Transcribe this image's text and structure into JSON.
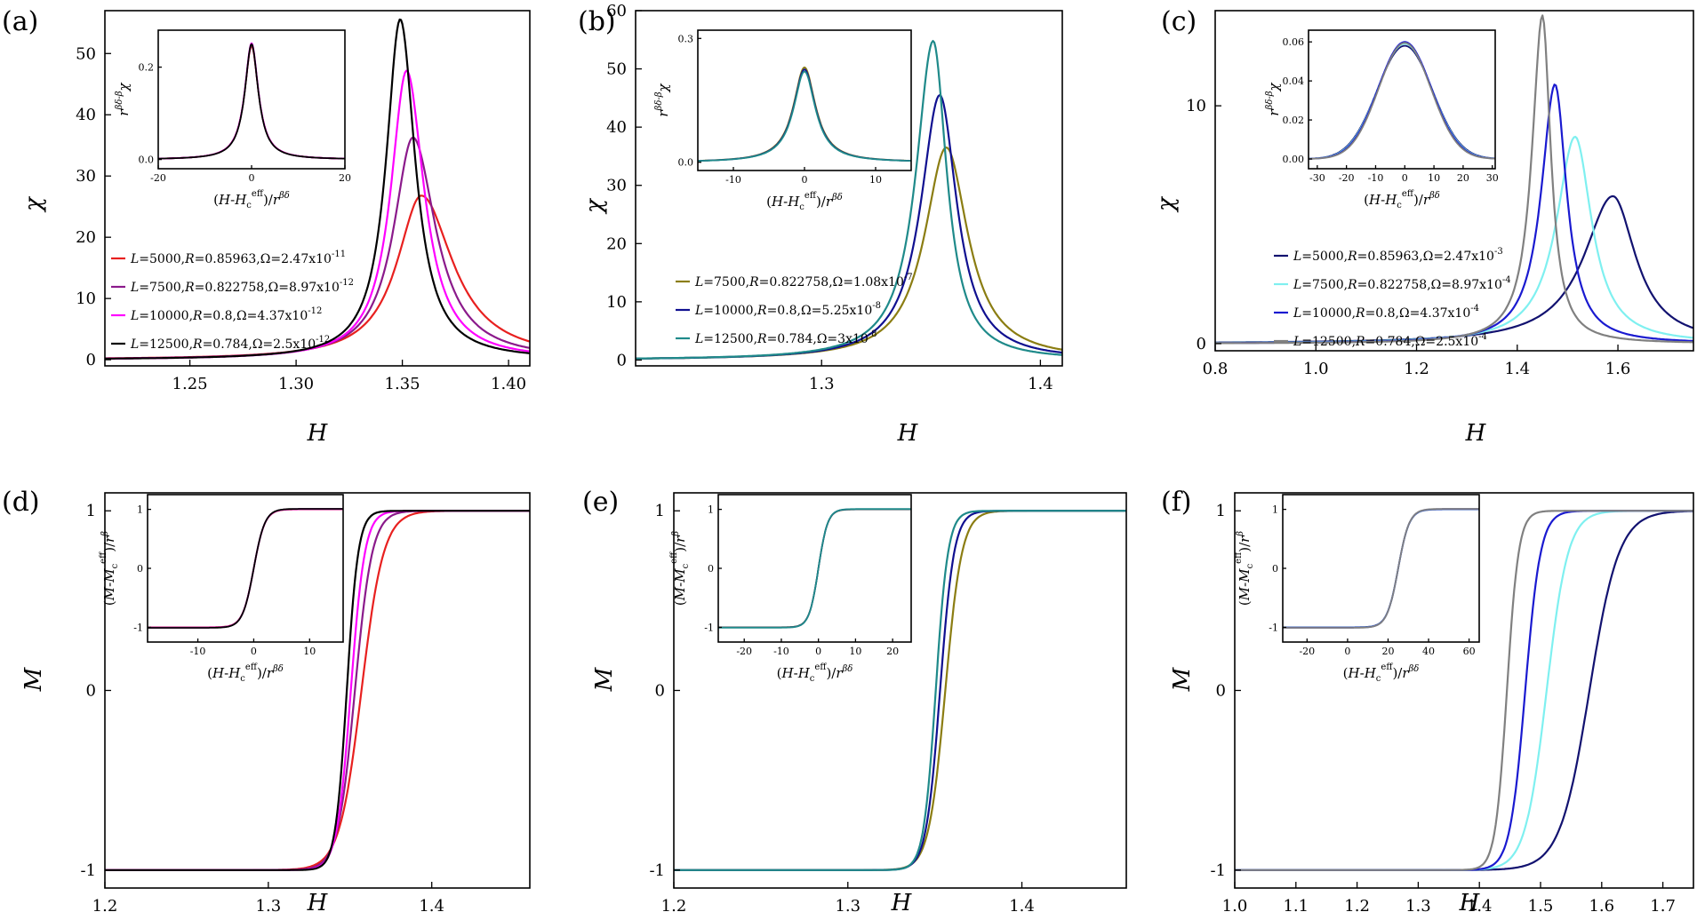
{
  "chart_data": [
    {
      "panel": "(a)",
      "type": "line",
      "xlabel": "H",
      "ylabel": "χ",
      "xlim": [
        1.21,
        1.41
      ],
      "ylim": [
        -1,
        57
      ],
      "xticks": [
        1.25,
        1.3,
        1.35,
        1.4
      ],
      "xtick_labels": [
        "1.25",
        "1.30",
        "1.35",
        "1.40"
      ],
      "yticks": [
        0,
        10,
        20,
        30,
        40,
        50
      ],
      "ytick_labels": [
        "0",
        "10",
        "20",
        "30",
        "40",
        "50"
      ],
      "legend": "lower-left",
      "series": [
        {
          "label": "L=5000, R=0.85963, Ω=2.47x10⁻¹¹",
          "color": "#e8201f",
          "peak_x": 1.359,
          "peak_y": 26.8,
          "width_left": 0.014,
          "width_right": 0.018
        },
        {
          "label": "L=7500, R=0.822758, Ω=8.97x10⁻¹²",
          "color": "#8b1a8b",
          "peak_x": 1.355,
          "peak_y": 36.3,
          "width_left": 0.011,
          "width_right": 0.013
        },
        {
          "label": "L=10000, R=0.8, Ω=4.37x10⁻¹²",
          "color": "#ff00ff",
          "peak_x": 1.352,
          "peak_y": 47.2,
          "width_left": 0.009,
          "width_right": 0.01
        },
        {
          "label": "L=12500, R=0.784, Ω=2.5x10⁻¹²",
          "color": "#000000",
          "peak_x": 1.349,
          "peak_y": 55.6,
          "width_left": 0.008,
          "width_right": 0.0085
        }
      ],
      "inset": {
        "xlabel": "(H-Hc^eff)/r^βδ",
        "ylabel": "r^(βδ-β) χ",
        "xlim": [
          -20,
          20
        ],
        "ylim": [
          -0.02,
          0.28
        ],
        "xticks": [
          -20,
          0,
          20
        ],
        "xtick_labels": [
          "-20",
          "0",
          "20"
        ],
        "yticks": [
          0.0,
          0.2
        ],
        "ytick_labels": [
          "0.0",
          "0.2"
        ],
        "peak_y": [
          0.245,
          0.248,
          0.252,
          0.25
        ],
        "width": 1.8
      }
    },
    {
      "panel": "(b)",
      "type": "line",
      "xlabel": "H",
      "ylabel": "χ",
      "xlim": [
        1.215,
        1.41
      ],
      "ylim": [
        -1,
        60
      ],
      "xticks": [
        1.3,
        1.4
      ],
      "xtick_labels": [
        "1.3",
        "1.4"
      ],
      "yticks": [
        0,
        10,
        20,
        30,
        40,
        50,
        60
      ],
      "ytick_labels": [
        "0",
        "10",
        "20",
        "30",
        "40",
        "50",
        "60"
      ],
      "legend": "lower-left",
      "series": [
        {
          "label": "L=7500, R=0.822758, Ω=1.08x10⁻⁷",
          "color": "#8b7d12",
          "peak_x": 1.357,
          "peak_y": 36.5,
          "width_left": 0.012,
          "width_right": 0.012
        },
        {
          "label": "L=10000, R=0.8, Ω=5.25x10⁻⁸",
          "color": "#101090",
          "peak_x": 1.354,
          "peak_y": 45.5,
          "width_left": 0.0105,
          "width_right": 0.0095
        },
        {
          "label": "L=12500, R=0.784, Ω=3x10⁻⁸",
          "color": "#1f8a8a",
          "peak_x": 1.351,
          "peak_y": 54.8,
          "width_left": 0.0095,
          "width_right": 0.0075
        }
      ],
      "inset": {
        "xlabel": "(H-Hc^eff)/r^βδ",
        "ylabel": "r^(βδ-β) χ",
        "xlim": [
          -15,
          15
        ],
        "ylim": [
          -0.02,
          0.32
        ],
        "xticks": [
          -10,
          0,
          10
        ],
        "xtick_labels": [
          "-10",
          "0",
          "10"
        ],
        "yticks": [
          0.0,
          0.3
        ],
        "ytick_labels": [
          "0.0",
          "0.3"
        ],
        "peak_y": [
          0.23,
          0.225,
          0.22
        ],
        "width": 1.9
      }
    },
    {
      "panel": "(c)",
      "type": "line",
      "xlabel": "H",
      "ylabel": "χ",
      "xlim": [
        0.8,
        1.75
      ],
      "ylim": [
        -0.3,
        14
      ],
      "xticks": [
        0.8,
        1.0,
        1.2,
        1.4,
        1.6
      ],
      "xtick_labels": [
        "0.8",
        "1.0",
        "1.2",
        "1.4",
        "1.6"
      ],
      "yticks": [
        0,
        10
      ],
      "ytick_labels": [
        "0",
        "10"
      ],
      "legend": "lower-left",
      "series": [
        {
          "label": "L=5000, R=0.85963, Ω=2.47x10⁻³",
          "color": "#121270",
          "peak_x": 1.59,
          "peak_y": 6.2,
          "width_left": 0.07,
          "width_right": 0.055
        },
        {
          "label": "L=7500, R=0.822758, Ω=8.97x10⁻⁴",
          "color": "#7ff0f0",
          "peak_x": 1.515,
          "peak_y": 8.7,
          "width_left": 0.045,
          "width_right": 0.04
        },
        {
          "label": "L=10000, R=0.8, Ω=4.37x10⁻⁴",
          "color": "#1a1ad0",
          "peak_x": 1.475,
          "peak_y": 10.9,
          "width_left": 0.033,
          "width_right": 0.028
        },
        {
          "label": "L=12500, R=0.784, Ω=2.5x10⁻⁴",
          "color": "#808080",
          "peak_x": 1.45,
          "peak_y": 13.8,
          "width_left": 0.025,
          "width_right": 0.02
        }
      ],
      "inset": {
        "xlabel": "(H-Hc^eff)/r^βδ",
        "ylabel": "r^(βδ-β) χ",
        "xlim": [
          -33,
          31
        ],
        "ylim": [
          -0.005,
          0.066
        ],
        "xticks": [
          -30,
          -20,
          -10,
          0,
          10,
          20,
          30
        ],
        "xtick_labels": [
          "-30",
          "-20",
          "-10",
          "0",
          "10",
          "20",
          "30"
        ],
        "yticks": [
          0.0,
          0.02,
          0.04,
          0.06
        ],
        "ytick_labels": [
          "0.00",
          "0.02",
          "0.04",
          "0.06"
        ],
        "peak_y": [
          0.058,
          0.059,
          0.06,
          0.0595
        ],
        "width": 9.5
      }
    },
    {
      "panel": "(d)",
      "type": "line",
      "xlabel": "H",
      "ylabel": "M",
      "xlim": [
        1.2,
        1.46
      ],
      "ylim": [
        -1.1,
        1.1
      ],
      "xticks": [
        1.2,
        1.3,
        1.4
      ],
      "xtick_labels": [
        "1.2",
        "1.3",
        "1.4"
      ],
      "yticks": [
        -1,
        0,
        1
      ],
      "ytick_labels": [
        "-1",
        "0",
        "1"
      ],
      "series": [
        {
          "color": "#e8201f",
          "center": 1.357,
          "width": 0.0135
        },
        {
          "color": "#8b1a8b",
          "center": 1.353,
          "width": 0.0105
        },
        {
          "color": "#ff00ff",
          "center": 1.3505,
          "width": 0.0085
        },
        {
          "color": "#000000",
          "center": 1.348,
          "width": 0.007
        }
      ],
      "inset": {
        "xlabel": "(H-Hc^eff)/r^βδ",
        "ylabel": "(M-Mc^eff)/r^β",
        "xlim": [
          -19,
          16
        ],
        "ylim": [
          -1.25,
          1.25
        ],
        "xticks": [
          -10,
          0,
          10
        ],
        "xtick_labels": [
          "-10",
          "0",
          "10"
        ],
        "yticks": [
          -1,
          0,
          1
        ],
        "ytick_labels": [
          "-1",
          "0",
          "1"
        ],
        "center": 0,
        "width": 2.0
      }
    },
    {
      "panel": "(e)",
      "type": "line",
      "xlabel": "H",
      "ylabel": "M",
      "xlim": [
        1.2,
        1.46
      ],
      "ylim": [
        -1.1,
        1.1
      ],
      "xticks": [
        1.2,
        1.3,
        1.4
      ],
      "xtick_labels": [
        "1.2",
        "1.3",
        "1.4"
      ],
      "yticks": [
        -1,
        0,
        1
      ],
      "ytick_labels": [
        "-1",
        "0",
        "1"
      ],
      "series": [
        {
          "color": "#8b7d12",
          "center": 1.356,
          "width": 0.0095
        },
        {
          "color": "#101090",
          "center": 1.353,
          "width": 0.008
        },
        {
          "color": "#1f8a8a",
          "center": 1.3505,
          "width": 0.007
        }
      ],
      "inset": {
        "xlabel": "(H-Hc^eff)/r^βδ",
        "ylabel": "(M-Mc^eff)/r^β",
        "xlim": [
          -27,
          25
        ],
        "ylim": [
          -1.25,
          1.25
        ],
        "xticks": [
          -20,
          -10,
          0,
          10,
          20
        ],
        "xtick_labels": [
          "-20",
          "-10",
          "0",
          "10",
          "20"
        ],
        "yticks": [
          -1,
          0,
          1
        ],
        "ytick_labels": [
          "-1",
          "0",
          "1"
        ],
        "center": 0,
        "width": 2.5
      }
    },
    {
      "panel": "(f)",
      "type": "line",
      "xlabel": "H",
      "ylabel": "M",
      "xlim": [
        1.0,
        1.75
      ],
      "ylim": [
        -1.1,
        1.1
      ],
      "xticks": [
        1.0,
        1.1,
        1.2,
        1.3,
        1.4,
        1.5,
        1.6,
        1.7
      ],
      "xtick_labels": [
        "1.0",
        "1.1",
        "1.2",
        "1.3",
        "1.4",
        "1.5",
        "1.6",
        "1.7"
      ],
      "yticks": [
        -1,
        0,
        1
      ],
      "ytick_labels": [
        "-1",
        "0",
        "1"
      ],
      "series": [
        {
          "color": "#121270",
          "center": 1.58,
          "width": 0.048
        },
        {
          "color": "#7ff0f0",
          "center": 1.51,
          "width": 0.035
        },
        {
          "color": "#1a1ad0",
          "center": 1.475,
          "width": 0.025
        },
        {
          "color": "#808080",
          "center": 1.445,
          "width": 0.019
        }
      ],
      "inset": {
        "xlabel": "(H-Hc^eff)/r^βδ",
        "ylabel": "(M-Mc^eff)/r^β",
        "xlim": [
          -32,
          65
        ],
        "ylim": [
          -1.25,
          1.25
        ],
        "xticks": [
          -20,
          0,
          20,
          40,
          60
        ],
        "xtick_labels": [
          "-20",
          "0",
          "20",
          "40",
          "60"
        ],
        "yticks": [
          -1,
          0,
          1
        ],
        "ytick_labels": [
          "-1",
          "0",
          "1"
        ],
        "center": 25,
        "width": 5.5
      }
    }
  ]
}
